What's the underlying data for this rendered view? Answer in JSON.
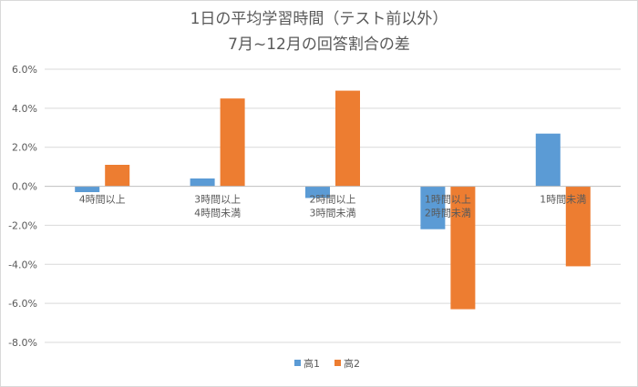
{
  "chart_data": {
    "type": "bar",
    "title_lines": [
      "1日の平均学習時間（テスト前以外）",
      "7月~12月の回答割合の差"
    ],
    "categories": [
      [
        "4時間以上"
      ],
      [
        "3時間以上",
        "4時間未満"
      ],
      [
        "2時間以上",
        "3時間未満"
      ],
      [
        "1時間以上",
        "2時間未満"
      ],
      [
        "1時間未満"
      ]
    ],
    "series": [
      {
        "name": "高1",
        "color": "#5b9bd5",
        "values": [
          -0.3,
          0.4,
          -0.6,
          -2.2,
          2.7
        ]
      },
      {
        "name": "高2",
        "color": "#ed7d31",
        "values": [
          1.1,
          4.5,
          4.9,
          -6.3,
          -4.1
        ]
      }
    ],
    "ylim": [
      -8.0,
      6.0
    ],
    "yticks": [
      "6.0%",
      "4.0%",
      "2.0%",
      "0.0%",
      "-2.0%",
      "-4.0%",
      "-6.0%",
      "-8.0%"
    ],
    "ytick_values": [
      6,
      4,
      2,
      0,
      -2,
      -4,
      -6,
      -8
    ],
    "gridlines": true,
    "legend_position": "bottom"
  }
}
